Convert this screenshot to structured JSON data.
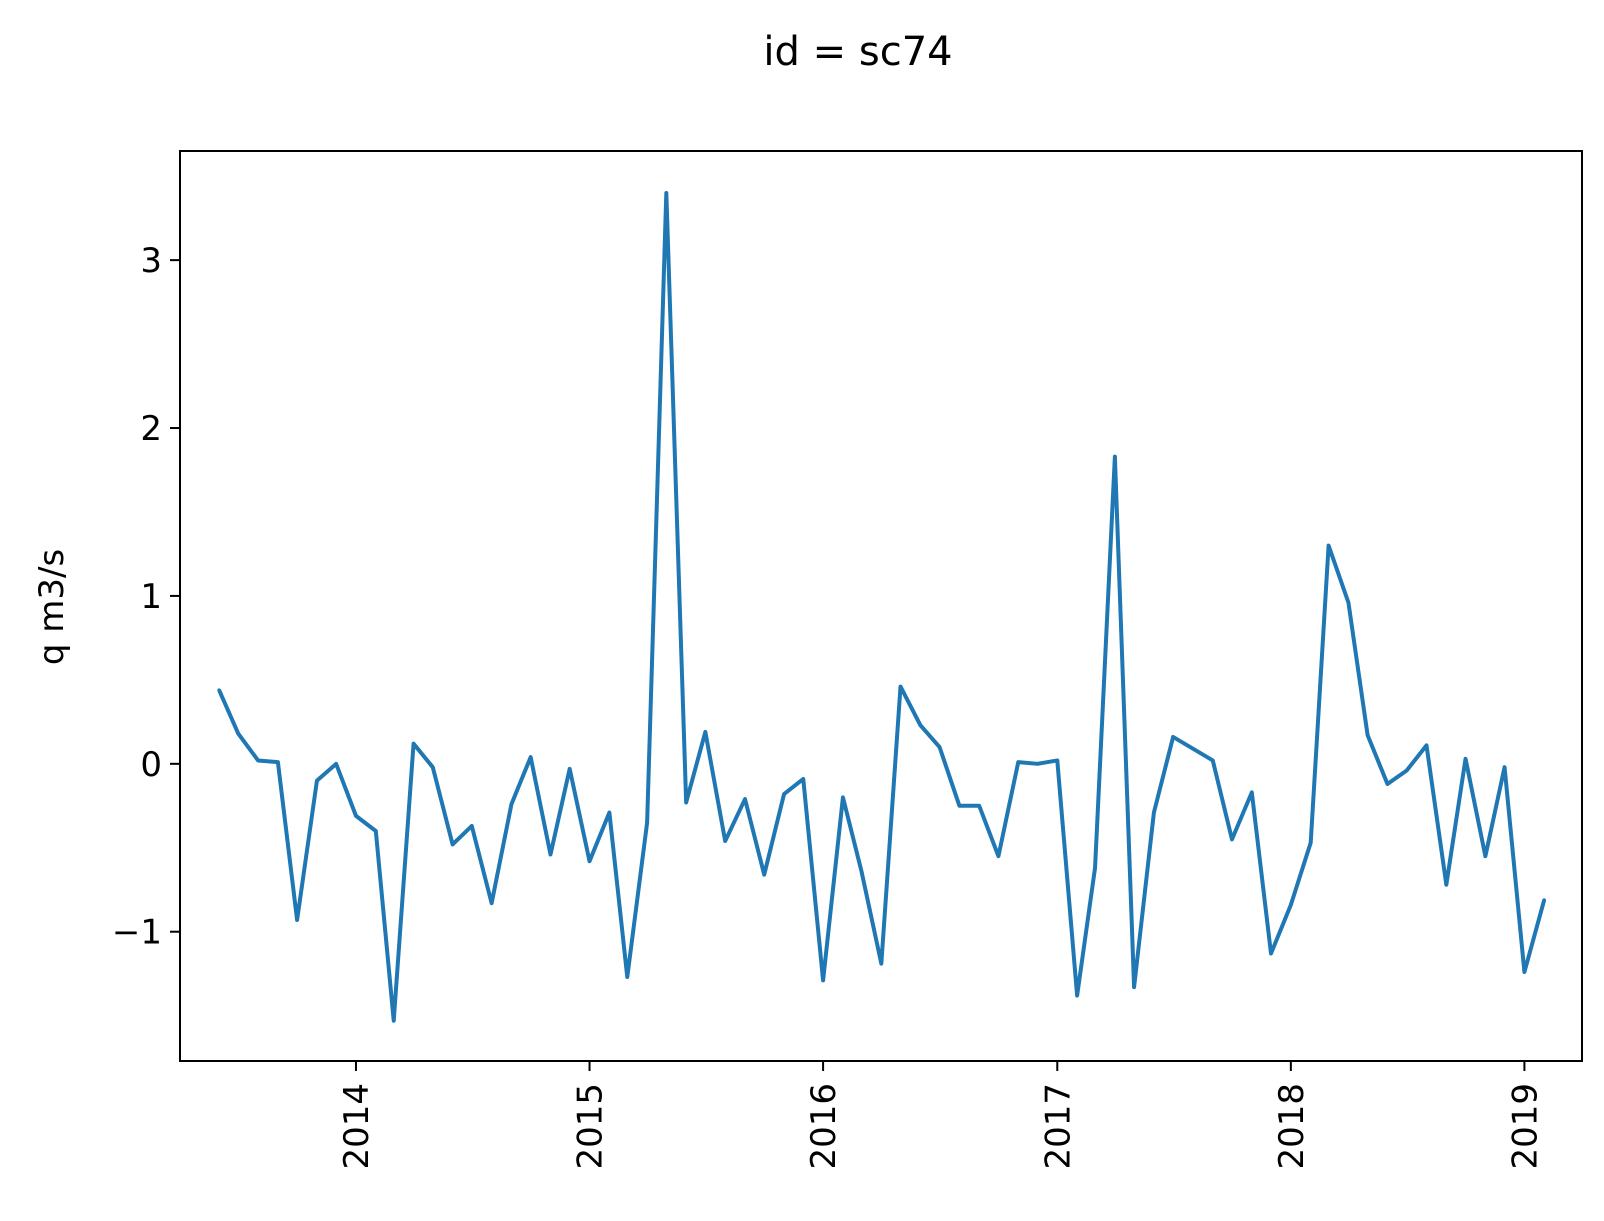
{
  "chart_data": {
    "type": "line",
    "title": "id = sc74",
    "xlabel": "",
    "ylabel": "q m3/s",
    "x_ticks": [
      "2014-01-01",
      "2015-01-01",
      "2016-01-01",
      "2017-01-01",
      "2018-01-01",
      "2019-01-01"
    ],
    "x_tick_labels": [
      "2014",
      "2015",
      "2016",
      "2017",
      "2018",
      "2019"
    ],
    "y_ticks": [
      -1,
      0,
      1,
      2,
      3
    ],
    "y_tick_labels": [
      "−1",
      "0",
      "1",
      "2",
      "3"
    ],
    "xlim": [
      "2013-04-01",
      "2019-04-01"
    ],
    "ylim": [
      -1.77,
      3.65
    ],
    "grid": false,
    "colors": {
      "line": "#1f77b4"
    },
    "series": [
      {
        "x": [
          "2013-06-01",
          "2013-07-01",
          "2013-08-01",
          "2013-09-01",
          "2013-10-01",
          "2013-11-01",
          "2013-12-01",
          "2014-01-01",
          "2014-02-01",
          "2014-03-01",
          "2014-04-01",
          "2014-05-01",
          "2014-06-01",
          "2014-07-01",
          "2014-08-01",
          "2014-09-01",
          "2014-10-01",
          "2014-11-01",
          "2014-12-01",
          "2015-01-01",
          "2015-02-01",
          "2015-03-01",
          "2015-04-01",
          "2015-05-01",
          "2015-06-01",
          "2015-07-01",
          "2015-08-01",
          "2015-09-01",
          "2015-10-01",
          "2015-11-01",
          "2015-12-01",
          "2016-01-01",
          "2016-02-01",
          "2016-03-01",
          "2016-04-01",
          "2016-05-01",
          "2016-06-01",
          "2016-07-01",
          "2016-08-01",
          "2016-09-01",
          "2016-10-01",
          "2016-11-01",
          "2016-12-01",
          "2017-01-01",
          "2017-02-01",
          "2017-03-01",
          "2017-04-01",
          "2017-05-01",
          "2017-06-01",
          "2017-07-01",
          "2017-08-01",
          "2017-09-01",
          "2017-10-01",
          "2017-11-01",
          "2017-12-01",
          "2018-01-01",
          "2018-02-01",
          "2018-03-01",
          "2018-04-01",
          "2018-05-01",
          "2018-06-01",
          "2018-07-01",
          "2018-08-01",
          "2018-09-01",
          "2018-10-01",
          "2018-11-01",
          "2018-12-01",
          "2019-01-01",
          "2019-02-01"
        ],
        "y": [
          0.44,
          0.18,
          0.02,
          0.01,
          -0.93,
          -0.1,
          0.0,
          -0.31,
          -0.4,
          -1.53,
          0.12,
          -0.02,
          -0.48,
          -0.37,
          -0.83,
          -0.24,
          0.04,
          -0.54,
          -0.03,
          -0.58,
          -0.29,
          -1.27,
          -0.35,
          3.4,
          -0.23,
          0.19,
          -0.46,
          -0.21,
          -0.66,
          -0.18,
          -0.09,
          -1.29,
          -0.2,
          -0.64,
          -1.19,
          0.46,
          0.23,
          0.1,
          -0.25,
          -0.25,
          -0.55,
          0.01,
          0.0,
          0.02,
          -1.38,
          -0.62,
          1.83,
          -1.33,
          -0.29,
          0.16,
          0.09,
          0.02,
          -0.45,
          -0.17,
          -1.13,
          -0.84,
          -0.47,
          1.3,
          0.96,
          0.17,
          -0.12,
          -0.04,
          0.11,
          -0.72,
          0.03,
          -0.55,
          -0.02,
          -1.24,
          -0.81
        ]
      }
    ]
  }
}
